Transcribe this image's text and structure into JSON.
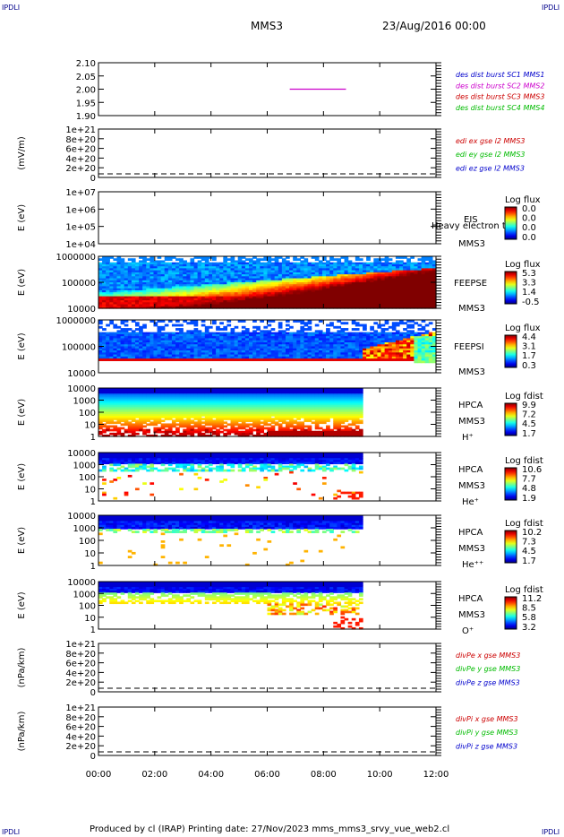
{
  "corner_label": "IPDLI",
  "header": {
    "mission": "MMS3",
    "date": "23/Aug/2016 00:00"
  },
  "footer": "Produced by cl (IRAP)   Printing date: 27/Nov/2023   mms_mms3_srvy_vue_web2.cl",
  "colors": {
    "blue": "#0000cc",
    "magenta": "#cc00cc",
    "red": "#cc0000",
    "green": "#00bb00",
    "navy": "#00008b"
  },
  "chart_data": {
    "type": "multi-panel",
    "x_ticks": [
      "00:00",
      "02:00",
      "04:00",
      "06:00",
      "08:00",
      "10:00",
      "12:00"
    ],
    "xlim_hours": [
      0,
      12
    ],
    "panels": [
      {
        "id": "p1",
        "type": "line",
        "ylim": [
          1.9,
          2.1
        ],
        "y_ticks": [
          "2.10",
          "2.05",
          "2.00",
          "1.95",
          "1.90"
        ],
        "ylabel": "",
        "legend": [
          {
            "text": "des dist burst SC1 MMS1",
            "color": "#0000cc"
          },
          {
            "text": "des dist burst SC2 MMS2",
            "color": "#cc00cc"
          },
          {
            "text": "des dist burst SC3 MMS3",
            "color": "#cc0000"
          },
          {
            "text": "des dist burst SC4 MMS4",
            "color": "#00bb00"
          }
        ],
        "series": [
          {
            "name": "des dist burst SC2 MMS2",
            "color": "#cc00cc",
            "x": [
              6.8,
              8.8
            ],
            "y": [
              2.0,
              2.0
            ]
          }
        ]
      },
      {
        "id": "p2",
        "type": "line",
        "ylim": [
          0,
          1.2e+21
        ],
        "y_ticks": [
          "1e+21",
          "8e+20",
          "6e+20",
          "4e+20",
          "2e+20",
          "0"
        ],
        "ylabel": "(mV/m)",
        "legend": [
          {
            "text": "edi ex gse l2 MMS3",
            "color": "#cc0000"
          },
          {
            "text": "edi ey gse l2 MMS3",
            "color": "#00bb00"
          },
          {
            "text": "edi ez gse l2 MMS3",
            "color": "#0000cc"
          }
        ]
      },
      {
        "id": "p3",
        "type": "heatmap",
        "ylabel": "E (eV)",
        "y_ticks": [
          "1e+07",
          "1e+06",
          "1e+05",
          "1e+04"
        ],
        "right_labels": [
          "EIS",
          "Heavy electron to",
          "MMS3"
        ],
        "cbar_title": "Log flux",
        "cbar_ticks": [
          "0.0",
          "0.0",
          "0.0",
          "0.0"
        ]
      },
      {
        "id": "p4",
        "type": "heatmap",
        "ylabel": "E (eV)",
        "y_ticks": [
          "1000000",
          "100000",
          "10000"
        ],
        "right_labels": [
          "FEEPSE",
          "MMS3"
        ],
        "cbar_title": "Log flux",
        "cbar_ticks": [
          "5.3",
          "3.3",
          "1.4",
          "-0.5"
        ]
      },
      {
        "id": "p5",
        "type": "heatmap",
        "ylabel": "E (eV)",
        "y_ticks": [
          "1000000",
          "100000",
          "10000"
        ],
        "right_labels": [
          "FEEPSI",
          "MMS3"
        ],
        "cbar_title": "Log flux",
        "cbar_ticks": [
          "4.4",
          "3.1",
          "1.7",
          "0.3"
        ]
      },
      {
        "id": "p6",
        "type": "heatmap",
        "ylabel": "E (eV)",
        "y_ticks": [
          "10000",
          "1000",
          "100",
          "10",
          "1"
        ],
        "right_labels": [
          "HPCA",
          "MMS3",
          "H⁺"
        ],
        "cbar_title": "Log fdist",
        "cbar_ticks": [
          "9.9",
          "7.2",
          "4.5",
          "1.7"
        ],
        "data_end_hour": 9.35
      },
      {
        "id": "p7",
        "type": "heatmap",
        "ylabel": "E (eV)",
        "y_ticks": [
          "10000",
          "1000",
          "100",
          "10",
          "1"
        ],
        "right_labels": [
          "HPCA",
          "MMS3",
          "He⁺"
        ],
        "cbar_title": "Log fdist",
        "cbar_ticks": [
          "10.6",
          "7.7",
          "4.8",
          "1.9"
        ],
        "data_end_hour": 9.35
      },
      {
        "id": "p8",
        "type": "heatmap",
        "ylabel": "E (eV)",
        "y_ticks": [
          "10000",
          "1000",
          "100",
          "10",
          "1"
        ],
        "right_labels": [
          "HPCA",
          "MMS3",
          "He⁺⁺"
        ],
        "cbar_title": "Log fdist",
        "cbar_ticks": [
          "10.2",
          "7.3",
          "4.5",
          "1.7"
        ],
        "data_end_hour": 9.35
      },
      {
        "id": "p9",
        "type": "heatmap",
        "ylabel": "E (eV)",
        "y_ticks": [
          "10000",
          "1000",
          "100",
          "10",
          "1"
        ],
        "right_labels": [
          "HPCA",
          "MMS3",
          "O⁺"
        ],
        "cbar_title": "Log fdist",
        "cbar_ticks": [
          "11.2",
          "8.5",
          "5.8",
          "3.2"
        ],
        "data_end_hour": 9.35
      },
      {
        "id": "p10",
        "type": "line",
        "ylim": [
          0,
          1.2e+21
        ],
        "y_ticks": [
          "1e+21",
          "8e+20",
          "6e+20",
          "4e+20",
          "2e+20",
          "0"
        ],
        "ylabel": "(nPa/km)",
        "legend": [
          {
            "text": "divPe x gse MMS3",
            "color": "#cc0000"
          },
          {
            "text": "divPe y gse MMS3",
            "color": "#00bb00"
          },
          {
            "text": "divPe z gse MMS3",
            "color": "#0000cc"
          }
        ]
      },
      {
        "id": "p11",
        "type": "line",
        "ylim": [
          0,
          1.2e+21
        ],
        "y_ticks": [
          "1e+21",
          "8e+20",
          "6e+20",
          "4e+20",
          "2e+20",
          "0"
        ],
        "ylabel": "(nPa/km)",
        "legend": [
          {
            "text": "divPi x gse MMS3",
            "color": "#cc0000"
          },
          {
            "text": "divPi y gse MMS3",
            "color": "#00bb00"
          },
          {
            "text": "divPi z gse MMS3",
            "color": "#0000cc"
          }
        ]
      }
    ]
  }
}
